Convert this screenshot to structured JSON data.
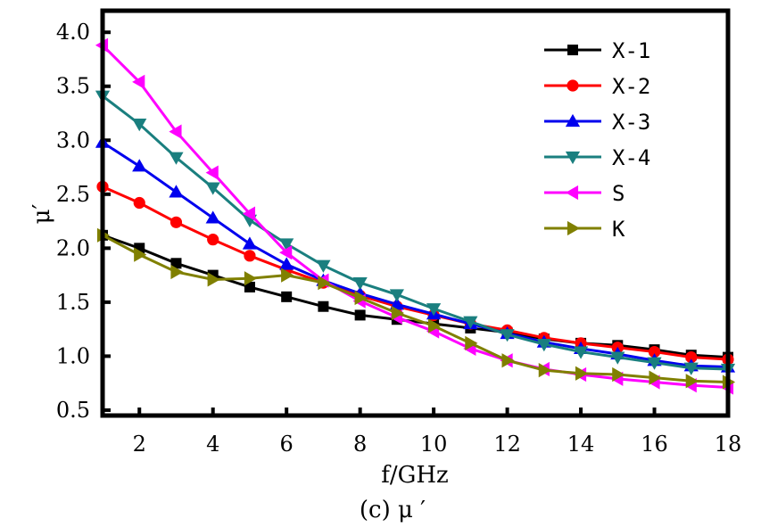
{
  "chart_data": {
    "type": "line",
    "title": "",
    "caption": "(c)  μ  ′",
    "xlabel": "f/GHz",
    "ylabel": "μ′",
    "xlim": [
      1,
      18
    ],
    "ylim": [
      0.45,
      4.2
    ],
    "xticks": [
      2,
      4,
      6,
      8,
      10,
      12,
      14,
      16,
      18
    ],
    "yticks": [
      0.5,
      1.0,
      1.5,
      2.0,
      2.5,
      3.0,
      3.5,
      4.0
    ],
    "legend_position": "top-right",
    "grid": false,
    "x": [
      1,
      2,
      3,
      4,
      5,
      6,
      7,
      8,
      9,
      10,
      11,
      12,
      13,
      14,
      15,
      16,
      17,
      18
    ],
    "series": [
      {
        "name": "X-1",
        "color": "#000000",
        "marker": "square",
        "values": [
          2.12,
          2.0,
          1.86,
          1.75,
          1.64,
          1.55,
          1.46,
          1.38,
          1.34,
          1.3,
          1.26,
          1.22,
          1.16,
          1.12,
          1.1,
          1.06,
          1.01,
          0.99
        ]
      },
      {
        "name": "X-2",
        "color": "#ff0000",
        "marker": "circle",
        "values": [
          2.57,
          2.42,
          2.24,
          2.08,
          1.93,
          1.8,
          1.68,
          1.56,
          1.46,
          1.38,
          1.3,
          1.24,
          1.17,
          1.12,
          1.08,
          1.04,
          0.99,
          0.97
        ]
      },
      {
        "name": "X-3",
        "color": "#0000ee",
        "marker": "triangle-up",
        "values": [
          2.98,
          2.76,
          2.52,
          2.28,
          2.04,
          1.85,
          1.7,
          1.58,
          1.48,
          1.39,
          1.3,
          1.21,
          1.13,
          1.07,
          1.02,
          0.96,
          0.91,
          0.9
        ]
      },
      {
        "name": "X-4",
        "color": "#1a7f7f",
        "marker": "triangle-down",
        "values": [
          3.41,
          3.15,
          2.84,
          2.56,
          2.26,
          2.04,
          1.84,
          1.68,
          1.57,
          1.44,
          1.32,
          1.2,
          1.11,
          1.04,
          0.99,
          0.94,
          0.89,
          0.88
        ]
      },
      {
        "name": "S",
        "color": "#ff00ff",
        "marker": "triangle-left",
        "values": [
          3.88,
          3.54,
          3.08,
          2.7,
          2.32,
          1.96,
          1.7,
          1.51,
          1.36,
          1.23,
          1.07,
          0.96,
          0.88,
          0.83,
          0.79,
          0.76,
          0.73,
          0.71
        ]
      },
      {
        "name": "K",
        "color": "#808000",
        "marker": "triangle-right",
        "values": [
          2.12,
          1.94,
          1.78,
          1.71,
          1.72,
          1.75,
          1.68,
          1.54,
          1.4,
          1.28,
          1.12,
          0.96,
          0.87,
          0.84,
          0.83,
          0.8,
          0.77,
          0.76
        ]
      }
    ]
  }
}
